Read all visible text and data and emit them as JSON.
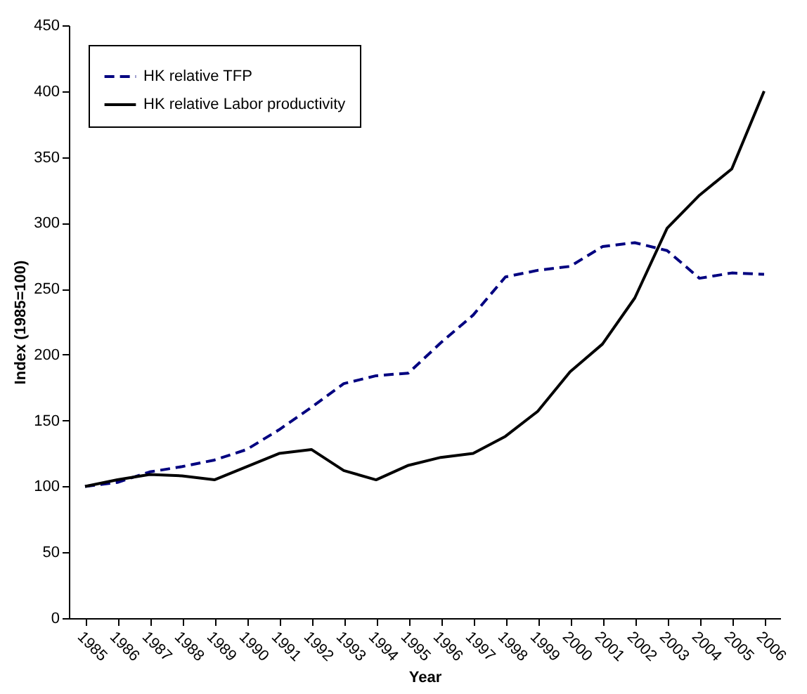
{
  "chart_data": {
    "type": "line",
    "xlabel": "Year",
    "ylabel": "Index (1985=100)",
    "categories": [
      "1985",
      "1986",
      "1987",
      "1988",
      "1989",
      "1990",
      "1991",
      "1992",
      "1993",
      "1994",
      "1995",
      "1996",
      "1997",
      "1998",
      "1999",
      "2000",
      "2001",
      "2002",
      "2003",
      "2004",
      "2005",
      "2006"
    ],
    "series": [
      {
        "name": "HK relative TFP",
        "color": "#000080",
        "line_style": "dashed",
        "values": [
          100,
          103,
          111,
          115,
          120,
          128,
          143,
          160,
          178,
          184,
          186,
          209,
          230,
          259,
          264,
          267,
          282,
          285,
          279,
          258,
          262,
          261
        ]
      },
      {
        "name": "HK relative Labor productivity",
        "color": "#000000",
        "line_style": "solid",
        "values": [
          100,
          105,
          109,
          108,
          105,
          115,
          125,
          128,
          112,
          105,
          116,
          122,
          125,
          138,
          157,
          187,
          208,
          243,
          296,
          321,
          341,
          400
        ]
      }
    ],
    "ylim": [
      0,
      450
    ],
    "yticks": [
      0,
      50,
      100,
      150,
      200,
      250,
      300,
      350,
      400,
      450
    ],
    "grid": false,
    "legend": "top left",
    "marker": "none"
  }
}
